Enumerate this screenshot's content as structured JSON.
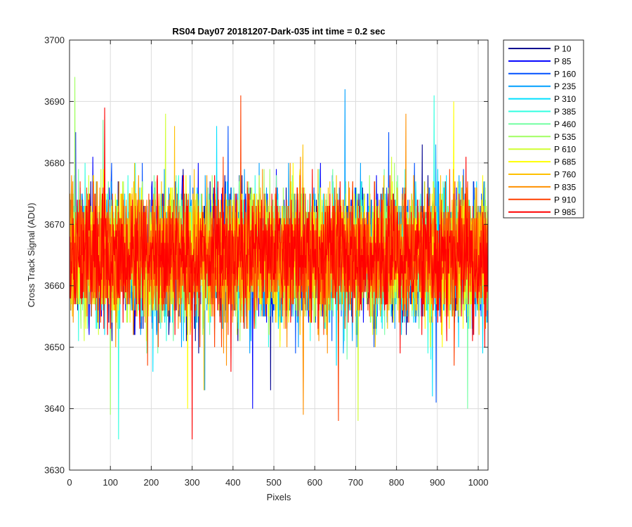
{
  "chart_data": {
    "type": "line",
    "title": "RS04 Day07 20181207-Dark-035 int time = 0.2 sec",
    "xlabel": "Pixels",
    "ylabel": "Cross Track Signal (ADU)",
    "xlim": [
      0,
      1024
    ],
    "ylim": [
      3630,
      3700
    ],
    "xticks": [
      0,
      100,
      200,
      300,
      400,
      500,
      600,
      700,
      800,
      900,
      1000
    ],
    "yticks": [
      3630,
      3640,
      3650,
      3660,
      3670,
      3680,
      3690,
      3700
    ],
    "grid": true,
    "legend_position": "outside-right",
    "num_points": 1024,
    "data_note": "",
    "series": [
      {
        "name": "P 10",
        "color": "#00008f",
        "mean": 3665,
        "spread": 5,
        "min": 3643,
        "max": 3683
      },
      {
        "name": "P 85",
        "color": "#0000ff",
        "mean": 3665,
        "spread": 5,
        "min": 3640,
        "max": 3685
      },
      {
        "name": "P 160",
        "color": "#0050ff",
        "mean": 3665,
        "spread": 5,
        "min": 3641,
        "max": 3686
      },
      {
        "name": "P 235",
        "color": "#00a0ff",
        "mean": 3665,
        "spread": 5,
        "min": 3643,
        "max": 3692
      },
      {
        "name": "P 310",
        "color": "#00e0ff",
        "mean": 3665,
        "spread": 5,
        "min": 3642,
        "max": 3686
      },
      {
        "name": "P 385",
        "color": "#30ffe0",
        "mean": 3665,
        "spread": 5,
        "min": 3635,
        "max": 3691
      },
      {
        "name": "P 460",
        "color": "#70ffa0",
        "mean": 3665,
        "spread": 5,
        "min": 3640,
        "max": 3687
      },
      {
        "name": "P 535",
        "color": "#a0ff60",
        "mean": 3665,
        "spread": 5,
        "min": 3639,
        "max": 3694
      },
      {
        "name": "P 610",
        "color": "#d0ff30",
        "mean": 3665,
        "spread": 5,
        "min": 3638,
        "max": 3688
      },
      {
        "name": "P 685",
        "color": "#ffff00",
        "mean": 3665,
        "spread": 5,
        "min": 3640,
        "max": 3690
      },
      {
        "name": "P 760",
        "color": "#ffc000",
        "mean": 3665,
        "spread": 5,
        "min": 3643,
        "max": 3686
      },
      {
        "name": "P 835",
        "color": "#ff9000",
        "mean": 3665,
        "spread": 5,
        "min": 3639,
        "max": 3688
      },
      {
        "name": "P 910",
        "color": "#ff4000",
        "mean": 3665,
        "spread": 5,
        "min": 3638,
        "max": 3691
      },
      {
        "name": "P 985",
        "color": "#ff0000",
        "mean": 3665,
        "spread": 5,
        "min": 3635,
        "max": 3689
      }
    ]
  }
}
